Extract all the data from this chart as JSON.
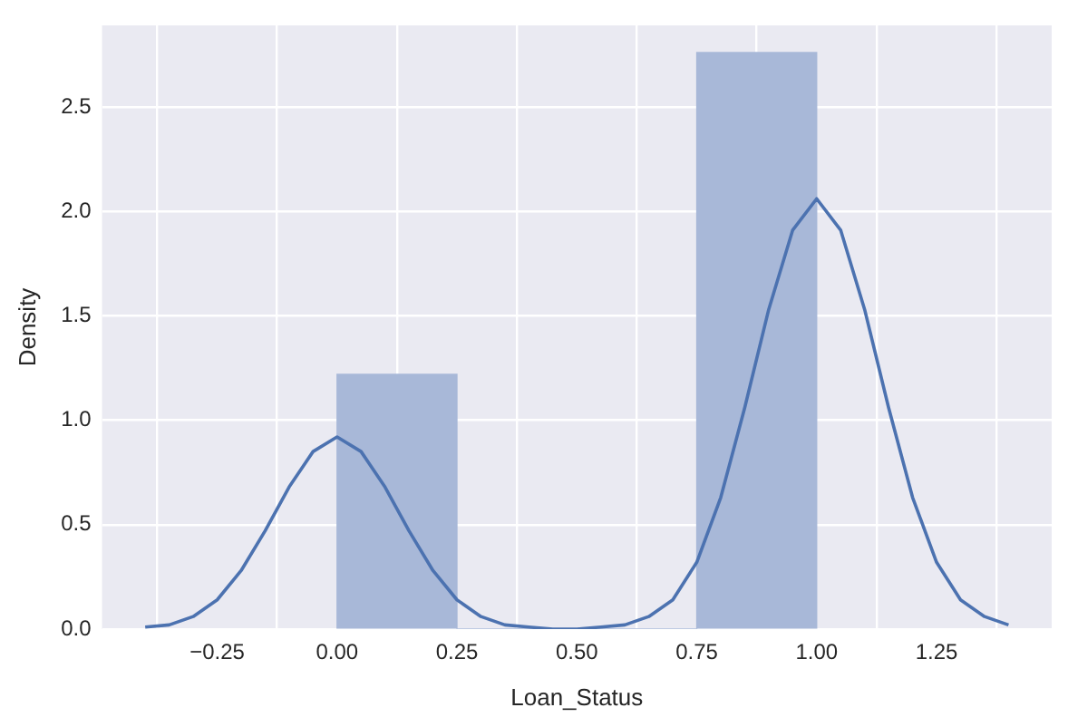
{
  "chart_data": {
    "type": "histogram",
    "xlabel": "Loan_Status",
    "ylabel": "Density",
    "series": [
      {
        "color": "#a8b8d8",
        "bins": [
          0,
          0.25,
          0.5,
          0.75,
          1
        ],
        "values": [
          1.22,
          0,
          0,
          2.76
        ]
      },
      {
        "type": "line",
        "color": "#4c72b0",
        "x": [
          -0.4,
          -0.35,
          -0.3,
          -0.25,
          -0.2,
          -0.15,
          -0.1,
          -0.05,
          0,
          0.05,
          0.1,
          0.15,
          0.2,
          0.25,
          0.3,
          0.35,
          0.4,
          0.45,
          0.5,
          0.55,
          0.6,
          0.65,
          0.7,
          0.75,
          0.8,
          0.85,
          0.9,
          0.95,
          1,
          1.05,
          1.1,
          1.15,
          1.2,
          1.25,
          1.3,
          1.35,
          1.4
        ],
        "values": [
          0.01,
          0.02,
          0.06,
          0.14,
          0.28,
          0.47,
          0.68,
          0.85,
          0.92,
          0.85,
          0.68,
          0.47,
          0.28,
          0.14,
          0.06,
          0.02,
          0.01,
          0,
          0,
          0.01,
          0.02,
          0.06,
          0.14,
          0.32,
          0.63,
          1.06,
          1.53,
          1.91,
          2.06,
          1.91,
          1.53,
          1.06,
          0.63,
          0.32,
          0.14,
          0.06,
          0.02
        ]
      }
    ],
    "xlim": [
      -0.49,
      1.49
    ],
    "ylim": [
      0,
      2.89
    ],
    "xticks": [
      {
        "value": -0.25,
        "label": "−0.25"
      },
      {
        "value": 0,
        "label": "0.00"
      },
      {
        "value": 0.25,
        "label": "0.25"
      },
      {
        "value": 0.5,
        "label": "0.50"
      },
      {
        "value": 0.75,
        "label": "0.75"
      },
      {
        "value": 1,
        "label": "1.00"
      },
      {
        "value": 1.25,
        "label": "1.25"
      }
    ],
    "yticks": [
      {
        "value": 0,
        "label": "0.0"
      },
      {
        "value": 0.5,
        "label": "0.5"
      },
      {
        "value": 1,
        "label": "1.0"
      },
      {
        "value": 1.5,
        "label": "1.5"
      },
      {
        "value": 2,
        "label": "2.0"
      },
      {
        "value": 2.5,
        "label": "2.5"
      }
    ],
    "grid": true,
    "marker": "none",
    "line_style": "solid"
  }
}
